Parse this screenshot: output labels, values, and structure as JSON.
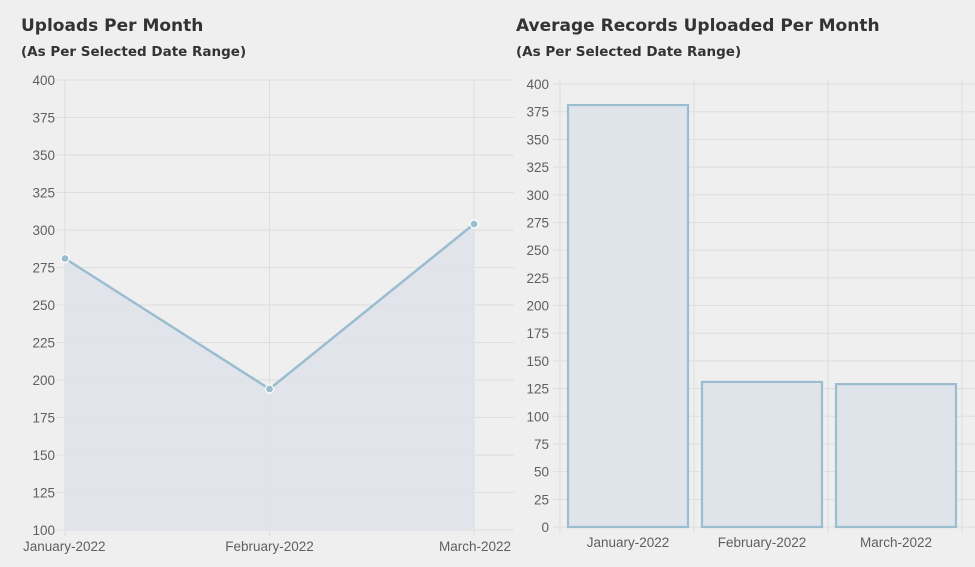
{
  "colors": {
    "background": "#efefef",
    "grid": "#dedede",
    "series_stroke": "#9bbdd0",
    "series_fill": "#dfe3ea",
    "text": "#333333",
    "tick_text": "#5f5f5f"
  },
  "chart_data": [
    {
      "type": "line",
      "title": "Uploads Per Month",
      "subtitle": "(As Per Selected Date Range)",
      "categories": [
        "January-2022",
        "February-2022",
        "March-2022"
      ],
      "values": [
        281,
        194,
        304
      ],
      "ylim": [
        100,
        400
      ],
      "yticks": [
        "400",
        "375",
        "350",
        "325",
        "300",
        "275",
        "250",
        "225",
        "200",
        "175",
        "150",
        "125",
        "100"
      ],
      "fill": true,
      "grid": true,
      "legend": "none"
    },
    {
      "type": "bar",
      "title": "Average Records Uploaded Per Month",
      "subtitle": "(As Per Selected Date Range)",
      "categories": [
        "January-2022",
        "February-2022",
        "March-2022"
      ],
      "values": [
        381,
        131,
        129
      ],
      "ylim": [
        0,
        400
      ],
      "yticks": [
        "400",
        "375",
        "350",
        "325",
        "300",
        "275",
        "250",
        "225",
        "200",
        "175",
        "150",
        "125",
        "100",
        "75",
        "50",
        "25",
        "0"
      ],
      "grid": true,
      "legend": "none"
    }
  ]
}
